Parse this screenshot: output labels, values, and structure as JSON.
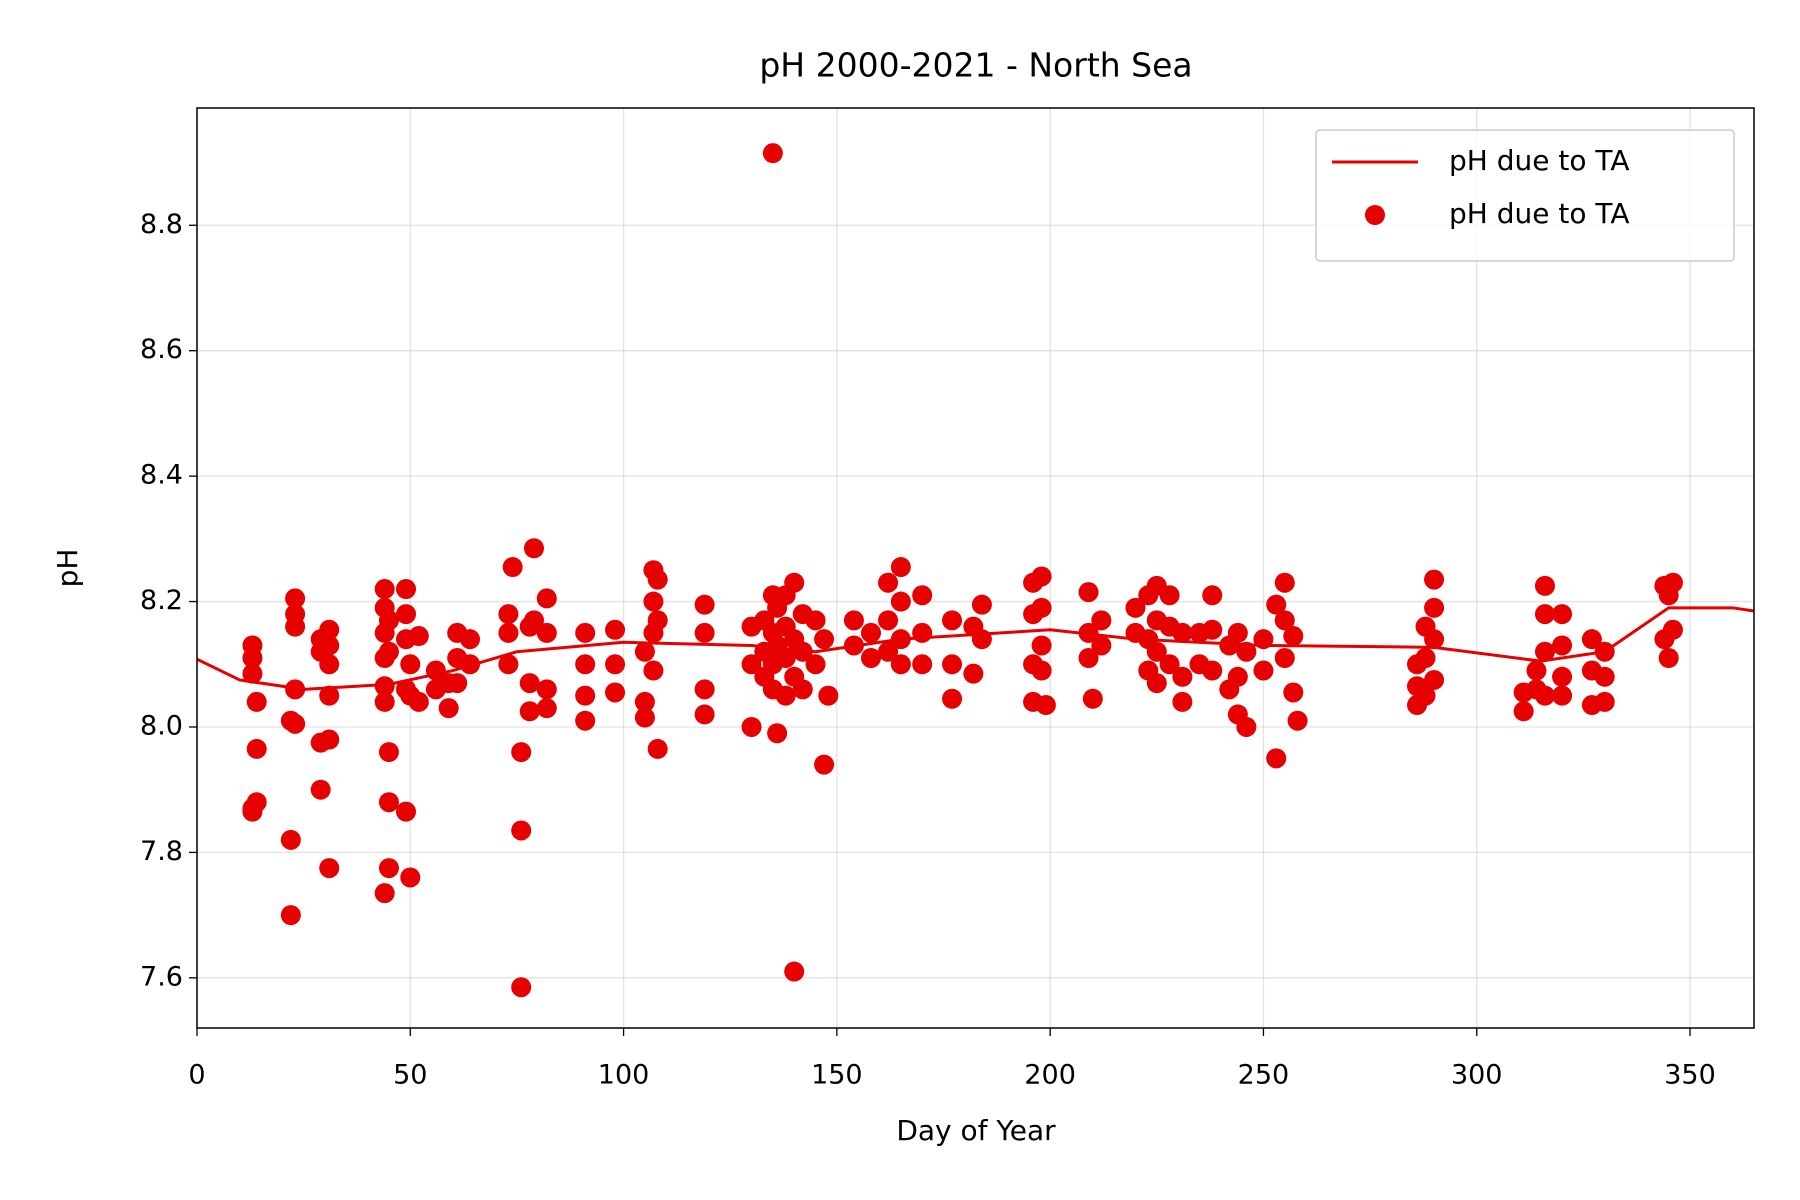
{
  "chart_data": {
    "type": "scatter",
    "title": "pH 2000-2021 - North Sea",
    "x_label": "Day of Year",
    "y_label": "pH",
    "xlim": [
      0,
      365
    ],
    "ylim": [
      7.52,
      8.987
    ],
    "xticks": [
      0,
      50,
      100,
      150,
      200,
      250,
      300,
      350
    ],
    "yticks": [
      7.6,
      7.8,
      {
        "value": 8,
        "label": "8.0"
      },
      8.2,
      8.4,
      8.6,
      8.8
    ],
    "grid": true,
    "legend": "upper right",
    "series": [
      {
        "name": "pH due to TA",
        "type": "line",
        "color": "#e60000",
        "x": [
          0,
          10,
          25,
          45,
          60,
          75,
          100,
          130,
          145,
          165,
          200,
          220,
          250,
          290,
          315,
          330,
          345,
          360,
          365
        ],
        "values": [
          8.108,
          8.075,
          8.06,
          8.068,
          8.09,
          8.12,
          8.135,
          8.13,
          8.12,
          8.14,
          8.155,
          8.14,
          8.13,
          8.127,
          8.105,
          8.12,
          8.19,
          8.19,
          8.185
        ]
      },
      {
        "name": "pH due to TA",
        "type": "scatter",
        "color": "#e60000",
        "x": [
          13,
          13,
          13,
          13,
          13,
          14,
          14,
          14,
          22,
          22,
          22,
          23,
          23,
          23,
          23,
          23,
          29,
          29,
          29,
          29,
          31,
          31,
          31,
          31,
          31,
          31,
          44,
          44,
          44,
          44,
          44,
          44,
          44,
          45,
          45,
          45,
          45,
          45,
          49,
          49,
          49,
          49,
          49,
          50,
          50,
          50,
          52,
          52,
          56,
          56,
          59,
          59,
          61,
          61,
          61,
          64,
          64,
          73,
          73,
          73,
          74,
          76,
          76,
          76,
          78,
          78,
          78,
          79,
          79,
          82,
          82,
          82,
          82,
          91,
          91,
          91,
          91,
          98,
          98,
          98,
          105,
          105,
          105,
          107,
          107,
          107,
          107,
          108,
          108,
          108,
          119,
          119,
          119,
          119,
          130,
          130,
          130,
          133,
          133,
          133,
          135,
          135,
          135,
          135,
          135,
          136,
          136,
          136,
          138,
          138,
          138,
          138,
          140,
          140,
          140,
          140,
          142,
          142,
          142,
          145,
          145,
          147,
          147,
          148,
          154,
          154,
          158,
          158,
          162,
          162,
          162,
          165,
          165,
          165,
          165,
          170,
          170,
          170,
          177,
          177,
          177,
          182,
          182,
          184,
          184,
          196,
          196,
          196,
          196,
          198,
          198,
          198,
          198,
          199,
          209,
          209,
          209,
          210,
          212,
          212,
          220,
          220,
          223,
          223,
          223,
          225,
          225,
          225,
          225,
          228,
          228,
          228,
          231,
          231,
          231,
          235,
          235,
          238,
          238,
          238,
          242,
          242,
          244,
          244,
          244,
          246,
          246,
          250,
          250,
          253,
          253,
          255,
          255,
          255,
          257,
          257,
          258,
          286,
          286,
          286,
          288,
          288,
          288,
          290,
          290,
          290,
          290,
          311,
          311,
          314,
          314,
          316,
          316,
          316,
          316,
          320,
          320,
          320,
          320,
          327,
          327,
          327,
          330,
          330,
          330,
          344,
          344,
          345,
          345,
          346,
          346
        ],
        "values": [
          8.13,
          8.11,
          8.085,
          7.87,
          7.865,
          8.04,
          7.965,
          7.88,
          7.82,
          7.7,
          8.01,
          8.205,
          8.18,
          8.16,
          8.06,
          8.005,
          8.14,
          8.12,
          7.975,
          7.9,
          8.155,
          8.13,
          8.1,
          8.05,
          7.98,
          7.775,
          8.22,
          8.19,
          8.15,
          8.11,
          8.065,
          8.04,
          7.735,
          8.17,
          8.12,
          7.96,
          7.88,
          7.775,
          8.22,
          8.18,
          8.14,
          8.06,
          7.865,
          8.1,
          8.05,
          7.76,
          8.145,
          8.04,
          8.09,
          8.06,
          8.07,
          8.03,
          8.15,
          8.11,
          8.07,
          8.14,
          8.1,
          8.18,
          8.15,
          8.1,
          8.255,
          7.96,
          7.835,
          7.585,
          8.16,
          8.07,
          8.025,
          8.285,
          8.17,
          8.205,
          8.15,
          8.06,
          8.03,
          8.15,
          8.1,
          8.05,
          8.01,
          8.155,
          8.1,
          8.055,
          8.12,
          8.04,
          8.015,
          8.25,
          8.2,
          8.15,
          8.09,
          8.235,
          8.17,
          7.965,
          8.195,
          8.15,
          8.06,
          8.02,
          8.16,
          8.1,
          8.0,
          8.17,
          8.12,
          8.08,
          8.915,
          8.21,
          8.15,
          8.1,
          8.06,
          8.19,
          8.13,
          7.99,
          8.21,
          8.16,
          8.11,
          8.05,
          8.23,
          8.14,
          8.08,
          7.61,
          8.18,
          8.12,
          8.06,
          8.17,
          8.1,
          8.14,
          7.94,
          8.05,
          8.17,
          8.13,
          8.15,
          8.11,
          8.23,
          8.17,
          8.12,
          8.255,
          8.2,
          8.14,
          8.1,
          8.21,
          8.15,
          8.1,
          8.17,
          8.1,
          8.045,
          8.16,
          8.085,
          8.195,
          8.14,
          8.23,
          8.18,
          8.1,
          8.04,
          8.24,
          8.19,
          8.13,
          8.09,
          8.035,
          8.215,
          8.15,
          8.11,
          8.045,
          8.17,
          8.13,
          8.19,
          8.15,
          8.21,
          8.14,
          8.09,
          8.225,
          8.17,
          8.12,
          8.07,
          8.21,
          8.16,
          8.1,
          8.15,
          8.08,
          8.04,
          8.15,
          8.1,
          8.21,
          8.155,
          8.09,
          8.13,
          8.06,
          8.15,
          8.08,
          8.02,
          8.12,
          8.0,
          8.14,
          8.09,
          8.195,
          7.95,
          8.23,
          8.17,
          8.11,
          8.145,
          8.055,
          8.01,
          8.1,
          8.065,
          8.035,
          8.16,
          8.11,
          8.05,
          8.235,
          8.19,
          8.14,
          8.075,
          8.055,
          8.025,
          8.09,
          8.06,
          8.225,
          8.18,
          8.12,
          8.05,
          8.18,
          8.13,
          8.08,
          8.05,
          8.14,
          8.09,
          8.035,
          8.12,
          8.08,
          8.04,
          8.225,
          8.14,
          8.21,
          8.11,
          8.23,
          8.155
        ]
      }
    ]
  }
}
